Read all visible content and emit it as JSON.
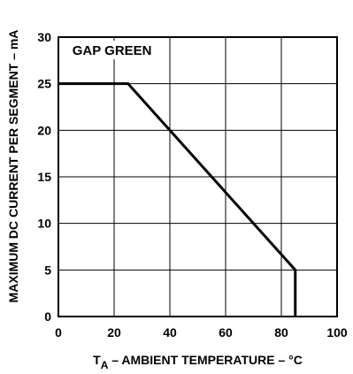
{
  "chart_data": {
    "type": "line",
    "title": "",
    "annotation": "GAP GREEN",
    "xlabel_prefix": "T",
    "xlabel_subscript": "A",
    "xlabel_rest": " – AMBIENT TEMPERATURE – °C",
    "ylabel": "MAXIMUM DC CURRENT PER SEGMENT – mA",
    "xlim": [
      0,
      100
    ],
    "ylim": [
      0,
      30
    ],
    "x_ticks": [
      "0",
      "20",
      "40",
      "60",
      "80",
      "100"
    ],
    "y_ticks": [
      "0",
      "5",
      "10",
      "15",
      "20",
      "25",
      "30"
    ],
    "grid": true,
    "series": [
      {
        "x": [
          0,
          25,
          85,
          85
        ],
        "y": [
          25,
          25,
          5,
          0
        ]
      }
    ]
  }
}
